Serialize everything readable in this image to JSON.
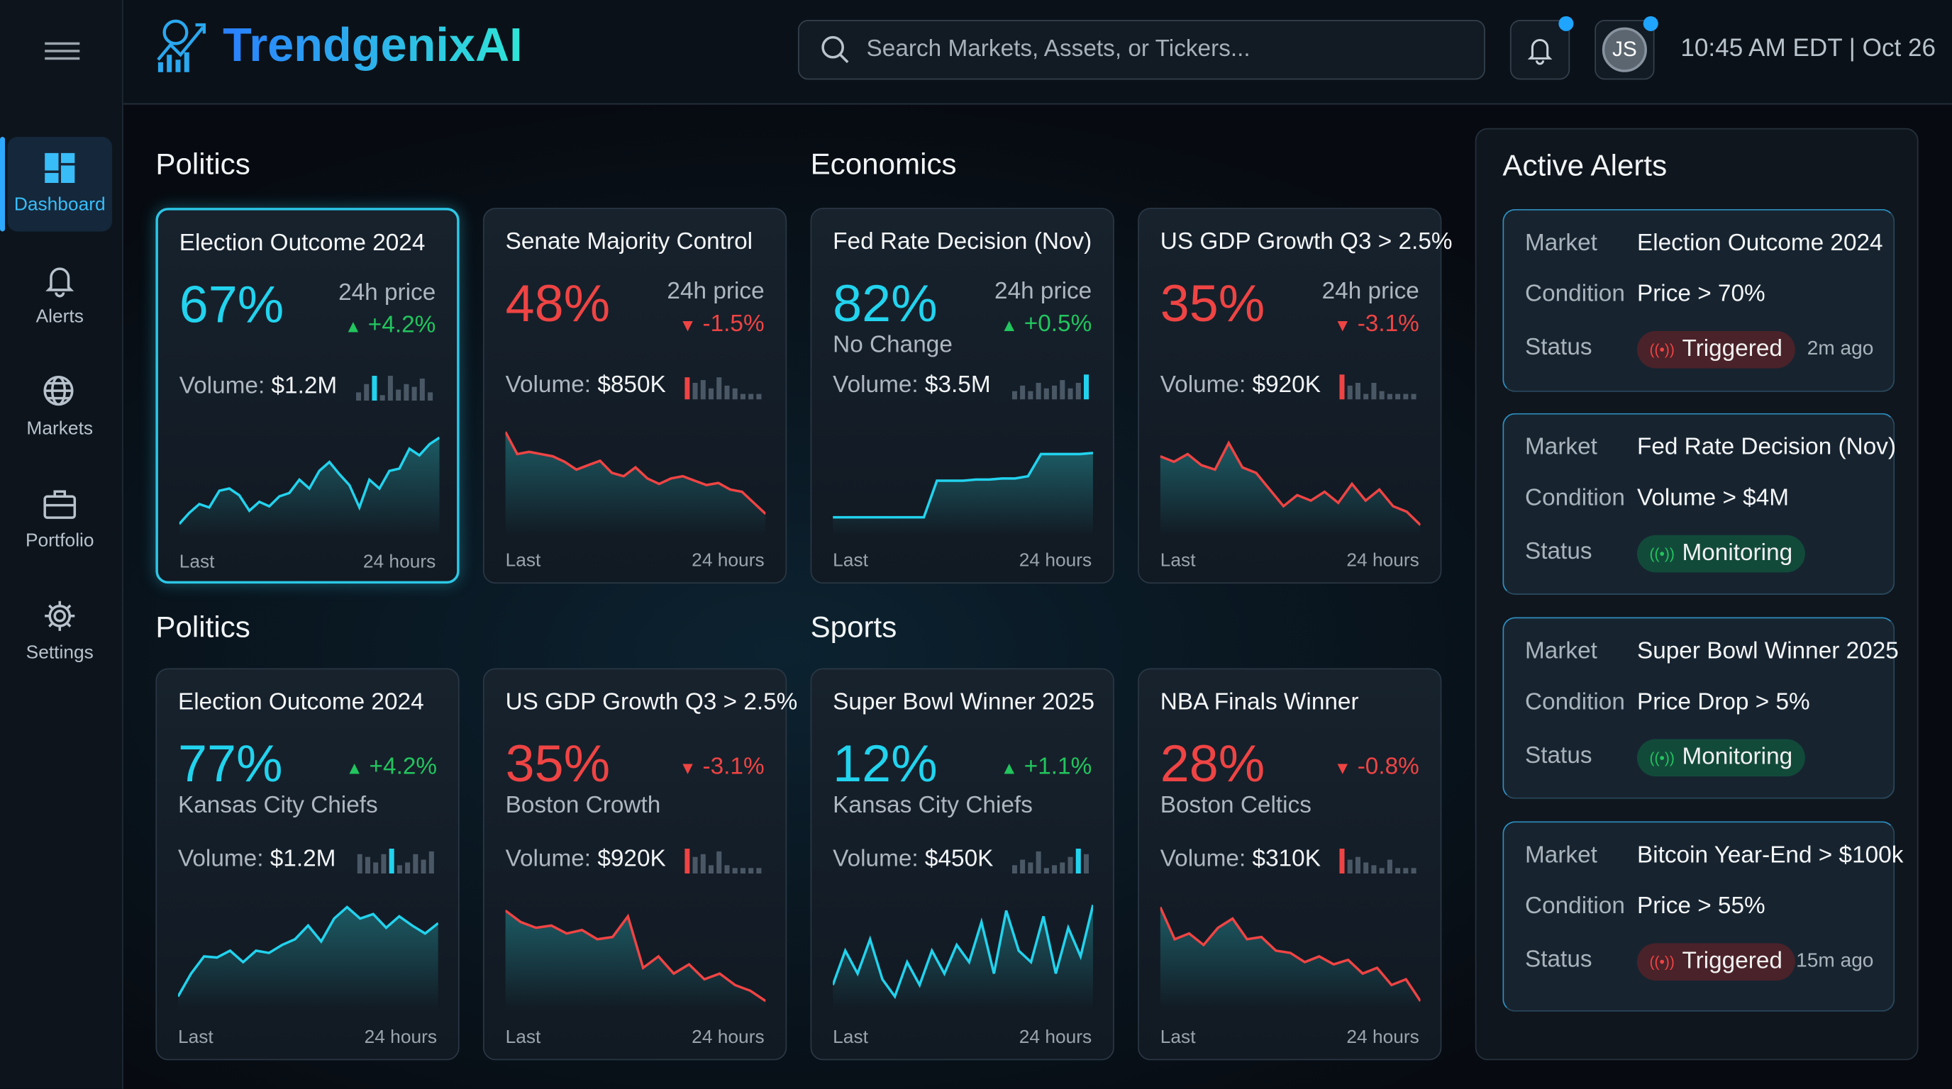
{
  "app": {
    "name": "TrendgenixAI",
    "time": "10:45 AM EDT | Oct 26",
    "user_initials": "JS"
  },
  "search": {
    "placeholder": "Search Markets, Assets, or Tickers..."
  },
  "sidebar": {
    "items": [
      {
        "label": "Dashboard",
        "icon": "dashboard-icon",
        "active": true
      },
      {
        "label": "Alerts",
        "icon": "bell-icon"
      },
      {
        "label": "Markets",
        "icon": "globe-icon"
      },
      {
        "label": "Portfolio",
        "icon": "briefcase-icon"
      },
      {
        "label": "Settings",
        "icon": "gear-icon"
      }
    ]
  },
  "colors": {
    "accent": "#22d3ee",
    "up": "#22c55e",
    "down": "#ef4444",
    "brand": "#2a7fff"
  },
  "sections": [
    {
      "title": "Politics"
    },
    {
      "title": "Economics"
    },
    {
      "title": "Politics"
    },
    {
      "title": "Sports"
    }
  ],
  "cards": [
    {
      "title": "Election Outcome 2024",
      "value": "67%",
      "trend": "up",
      "price_label": "24h price",
      "change": "+4.2%",
      "volume_label": "Volume:",
      "volume": "$1.2M",
      "footer_left": "Last",
      "footer_right": "24 hours",
      "selected": true,
      "spark": [
        10,
        20,
        28,
        25,
        40,
        42,
        36,
        22,
        30,
        26,
        35,
        38,
        50,
        42,
        58,
        66,
        55,
        45,
        25,
        50,
        42,
        58,
        60,
        78,
        72,
        82,
        88
      ],
      "bars": [
        3,
        6,
        9,
        2,
        9,
        4,
        6,
        5,
        8,
        3
      ]
    },
    {
      "title": "Senate Majority Control",
      "value": "48%",
      "trend": "down",
      "price_label": "24h price",
      "change": "-1.5%",
      "volume_label": "Volume:",
      "volume": "$850K",
      "footer_left": "Last",
      "footer_right": "24 hours",
      "spark": [
        92,
        72,
        74,
        72,
        70,
        65,
        58,
        62,
        66,
        55,
        52,
        60,
        50,
        45,
        50,
        52,
        48,
        44,
        46,
        40,
        38,
        28,
        18
      ],
      "bars": [
        8,
        6,
        7,
        4,
        8,
        5,
        4,
        2,
        2,
        2
      ]
    },
    {
      "title": "Fed Rate Decision (Nov)",
      "value": "82%",
      "trend": "up",
      "price_label": "24h price",
      "change": "+0.5%",
      "subtitle": "No Change",
      "volume_label": "Volume:",
      "volume": "$3.5M",
      "footer_left": "Last",
      "footer_right": "24 hours",
      "spark": [
        15,
        15,
        15,
        15,
        15,
        15,
        15,
        15,
        48,
        48,
        48,
        49,
        49,
        50,
        50,
        52,
        72,
        72,
        72,
        72,
        73
      ],
      "bars": [
        3,
        5,
        3,
        6,
        4,
        5,
        7,
        4,
        6,
        9
      ]
    },
    {
      "title": "US GDP Growth Q3 > 2.5%",
      "value": "35%",
      "trend": "down",
      "price_label": "24h price",
      "change": "-3.1%",
      "volume_label": "Volume:",
      "volume": "$920K",
      "footer_left": "Last",
      "footer_right": "24 hours",
      "spark": [
        70,
        65,
        72,
        62,
        58,
        82,
        60,
        55,
        40,
        25,
        35,
        30,
        38,
        28,
        45,
        30,
        40,
        25,
        20,
        8
      ],
      "bars": [
        9,
        5,
        6,
        2,
        6,
        3,
        2,
        2,
        2,
        2
      ]
    },
    {
      "title": "Election Outcome 2024",
      "value": "77%",
      "trend": "up",
      "change": "+4.2%",
      "subtitle": "Kansas City Chiefs",
      "volume_label": "Volume:",
      "volume": "$1.2M",
      "footer_left": "Last",
      "footer_right": "24 hours",
      "spark": [
        10,
        30,
        45,
        44,
        50,
        40,
        50,
        48,
        55,
        60,
        72,
        58,
        78,
        88,
        78,
        82,
        70,
        80,
        72,
        65,
        74
      ],
      "bars": [
        7,
        6,
        4,
        7,
        9,
        3,
        4,
        7,
        5,
        8
      ]
    },
    {
      "title": "US GDP Growth Q3 > 2.5%",
      "value": "35%",
      "trend": "down",
      "change": "-3.1%",
      "subtitle": "Boston Crowth",
      "volume_label": "Volume:",
      "volume": "$920K",
      "footer_left": "Last",
      "footer_right": "24 hours",
      "spark": [
        85,
        75,
        70,
        72,
        65,
        68,
        60,
        62,
        80,
        35,
        45,
        30,
        38,
        25,
        30,
        20,
        15,
        6
      ],
      "bars": [
        9,
        6,
        7,
        3,
        8,
        3,
        2,
        2,
        2,
        2
      ]
    },
    {
      "title": "Super Bowl Winner 2025",
      "value": "12%",
      "trend": "up",
      "change": "+1.1%",
      "subtitle": "Kansas City Chiefs",
      "volume_label": "Volume:",
      "volume": "$450K",
      "footer_left": "Last",
      "footer_right": "24 hours",
      "spark": [
        20,
        50,
        30,
        60,
        25,
        10,
        40,
        20,
        50,
        30,
        55,
        40,
        75,
        30,
        85,
        50,
        40,
        80,
        30,
        70,
        45,
        90
      ],
      "bars": [
        3,
        5,
        4,
        8,
        2,
        3,
        4,
        6,
        9,
        7
      ]
    },
    {
      "title": "NBA Finals Winner",
      "value": "28%",
      "trend": "down",
      "change": "-0.8%",
      "subtitle": "Boston Celtics",
      "volume_label": "Volume:",
      "volume": "$310K",
      "footer_left": "Last",
      "footer_right": "24 hours",
      "spark": [
        88,
        60,
        65,
        55,
        70,
        78,
        60,
        62,
        50,
        48,
        40,
        45,
        38,
        42,
        30,
        35,
        20,
        25,
        6
      ],
      "bars": [
        9,
        5,
        6,
        4,
        3,
        2,
        5,
        2,
        2,
        2
      ]
    }
  ],
  "alerts": {
    "title": "Active Alerts",
    "market_label": "Market",
    "condition_label": "Condition",
    "status_label": "Status",
    "items": [
      {
        "market": "Election Outcome 2024",
        "condition": "Price > 70%",
        "status": "Triggered",
        "time": "2m ago"
      },
      {
        "market": "Fed Rate Decision (Nov)",
        "condition": "Volume > $4M",
        "status": "Monitoring"
      },
      {
        "market": "Super Bowl Winner 2025",
        "condition": "Price Drop > 5%",
        "status": "Monitoring"
      },
      {
        "market": "Bitcoin Year-End > $100k",
        "condition": "Price > 55%",
        "status": "Triggered",
        "time": "15m ago"
      }
    ]
  }
}
